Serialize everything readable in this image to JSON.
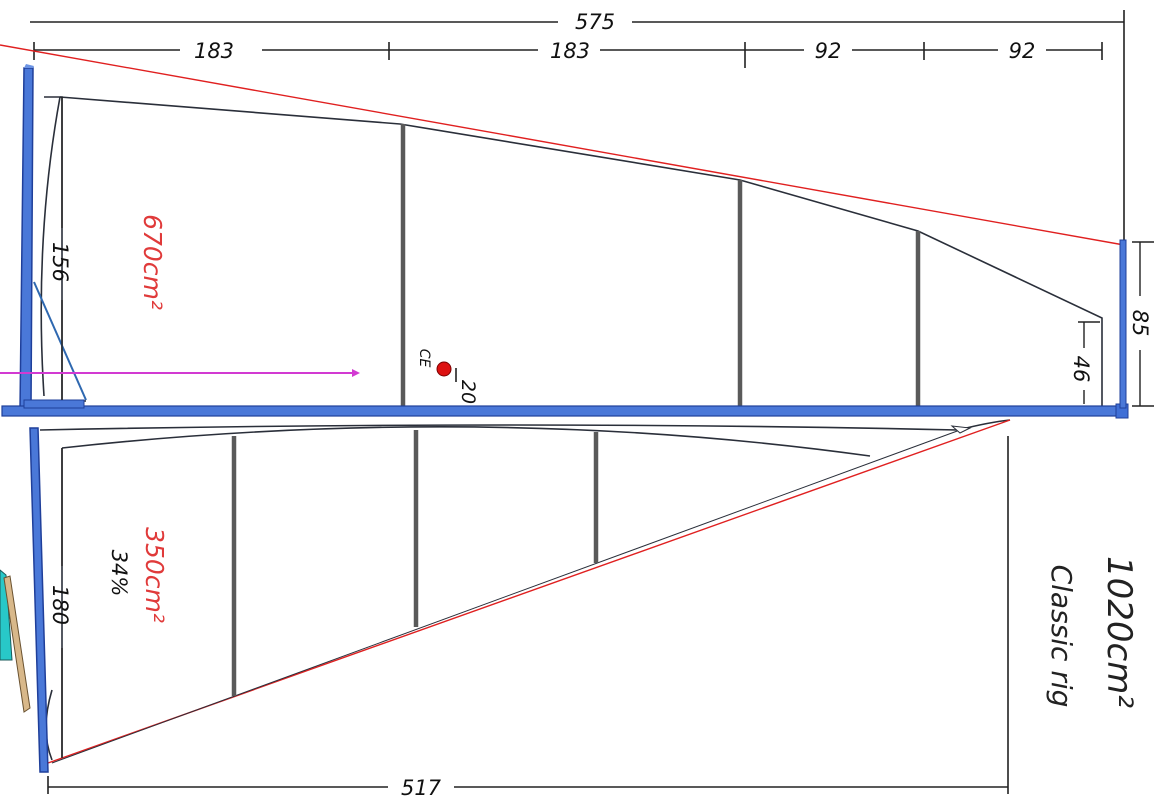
{
  "dimensions": {
    "overall_top": "575",
    "segment_1": "183",
    "segment_2": "183",
    "segment_3": "92",
    "segment_4": "92",
    "main_luff": "156",
    "main_leech_height": "46",
    "main_head_right": "85",
    "ce_offset": "20",
    "jib_luff": "180",
    "jib_foot": "517"
  },
  "labels": {
    "main_area": "670cm²",
    "jib_area": "350cm²",
    "jib_percent": "34%",
    "ce": "CE",
    "total_area": "1020cm²",
    "rig_name": "Classic rig"
  },
  "colors": {
    "spar_blue": "#4a78d8",
    "spar_edge": "#1f3f9a",
    "red_line": "#e02020",
    "ce_dot": "#dd1111",
    "arrow_magenta": "#d23ad2",
    "batten_gray": "#5a5a5a"
  }
}
